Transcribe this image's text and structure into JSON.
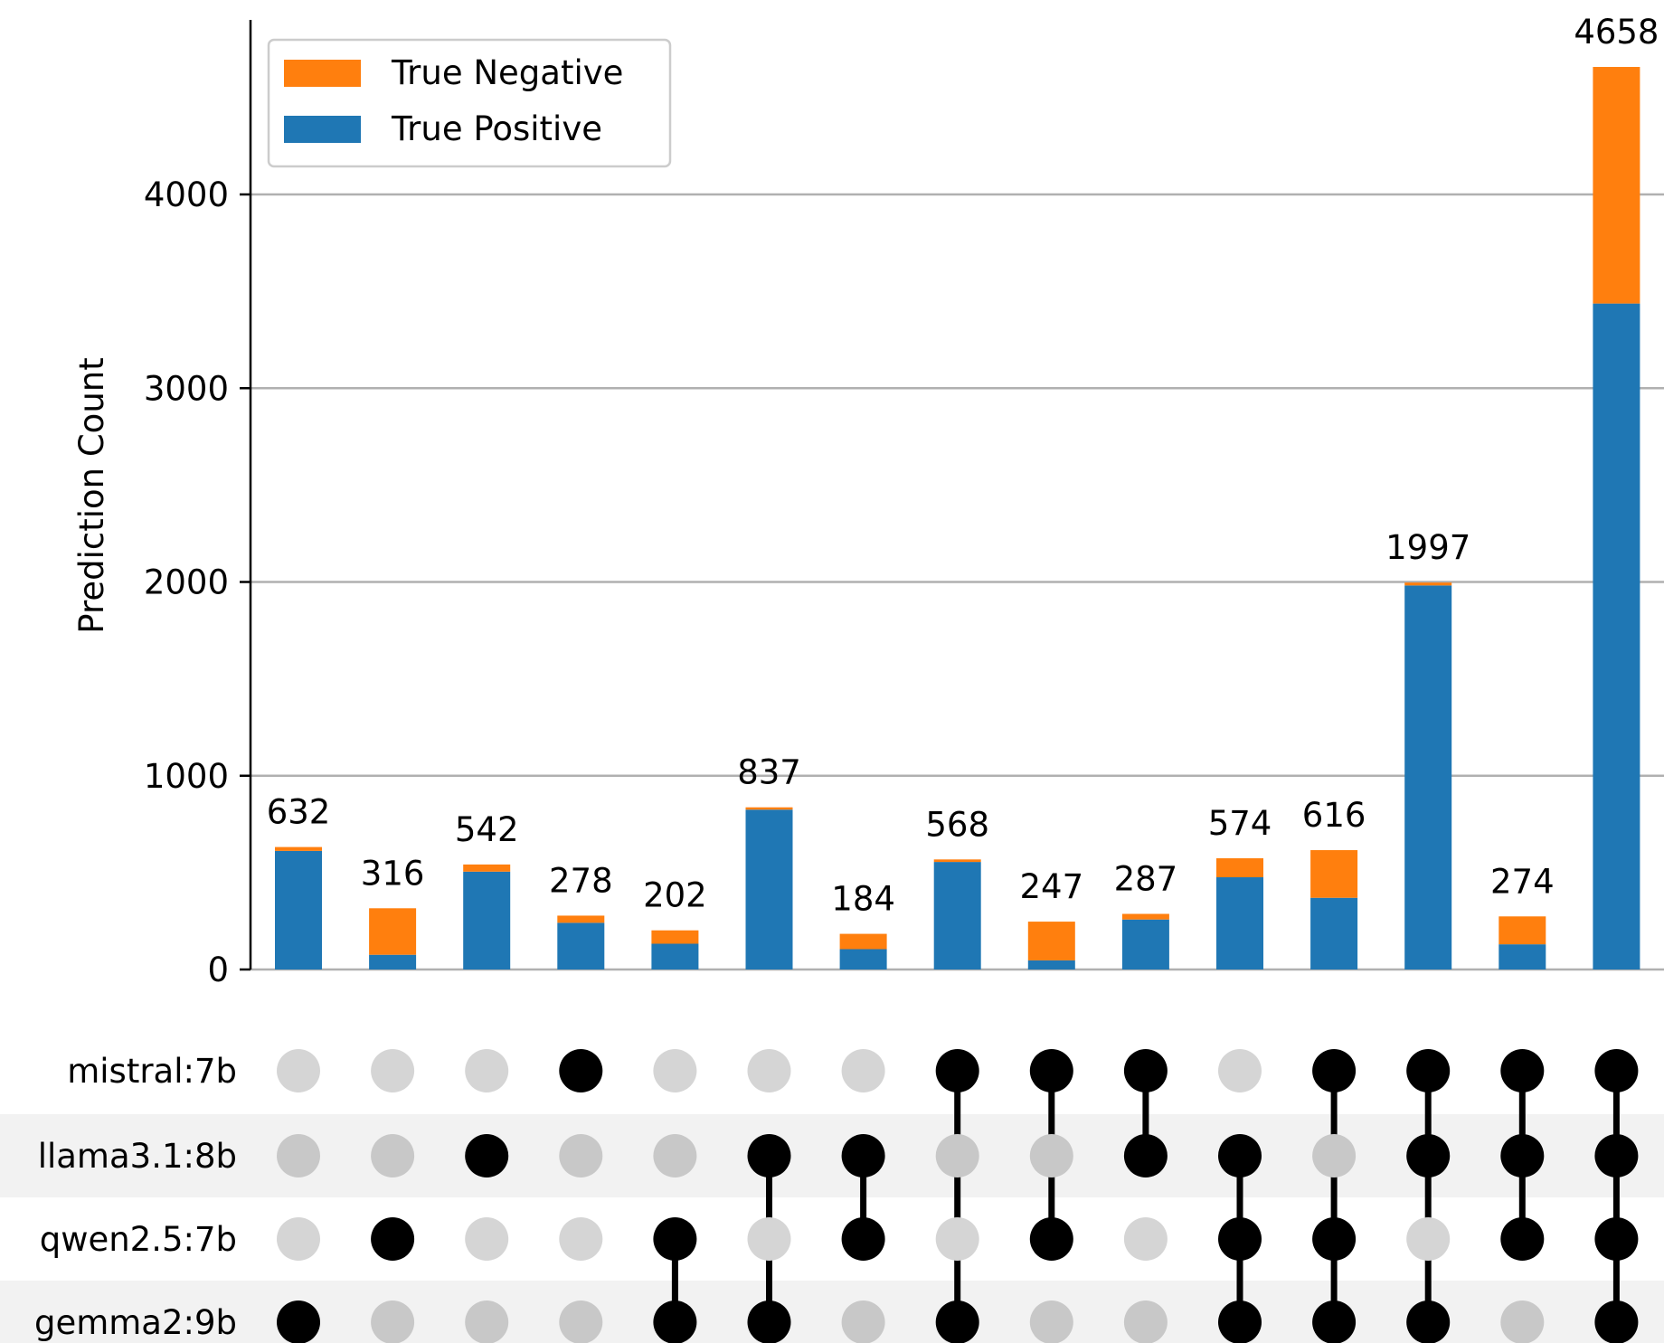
{
  "chart_data": {
    "type": "upset",
    "ylabel": "Prediction Count",
    "ylim": [
      0,
      4900
    ],
    "yticks": [
      0,
      1000,
      2000,
      3000,
      4000
    ],
    "grid": true,
    "legend_position": "top-left",
    "legend": [
      {
        "name": "True Negative",
        "color": "#ff7f0e"
      },
      {
        "name": "True Positive",
        "color": "#1f77b4"
      }
    ],
    "sets": [
      "mistral:7b",
      "llama3.1:8b",
      "qwen2.5:7b",
      "gemma2:9b"
    ],
    "intersections": [
      {
        "members": [
          "gemma2:9b"
        ],
        "total": 632,
        "tp": 612,
        "tn": 20
      },
      {
        "members": [
          "qwen2.5:7b"
        ],
        "total": 316,
        "tp": 76,
        "tn": 240
      },
      {
        "members": [
          "llama3.1:8b"
        ],
        "total": 542,
        "tp": 505,
        "tn": 37
      },
      {
        "members": [
          "mistral:7b"
        ],
        "total": 278,
        "tp": 241,
        "tn": 37
      },
      {
        "members": [
          "qwen2.5:7b",
          "gemma2:9b"
        ],
        "total": 202,
        "tp": 133,
        "tn": 69
      },
      {
        "members": [
          "llama3.1:8b",
          "gemma2:9b"
        ],
        "total": 837,
        "tp": 825,
        "tn": 12
      },
      {
        "members": [
          "llama3.1:8b",
          "qwen2.5:7b"
        ],
        "total": 184,
        "tp": 105,
        "tn": 79
      },
      {
        "members": [
          "mistral:7b",
          "gemma2:9b"
        ],
        "total": 568,
        "tp": 555,
        "tn": 13
      },
      {
        "members": [
          "mistral:7b",
          "qwen2.5:7b"
        ],
        "total": 247,
        "tp": 47,
        "tn": 200
      },
      {
        "members": [
          "mistral:7b",
          "llama3.1:8b"
        ],
        "total": 287,
        "tp": 258,
        "tn": 29
      },
      {
        "members": [
          "llama3.1:8b",
          "qwen2.5:7b",
          "gemma2:9b"
        ],
        "total": 574,
        "tp": 476,
        "tn": 98
      },
      {
        "members": [
          "mistral:7b",
          "qwen2.5:7b",
          "gemma2:9b"
        ],
        "total": 616,
        "tp": 370,
        "tn": 246
      },
      {
        "members": [
          "mistral:7b",
          "llama3.1:8b",
          "gemma2:9b"
        ],
        "total": 1997,
        "tp": 1982,
        "tn": 15
      },
      {
        "members": [
          "mistral:7b",
          "llama3.1:8b",
          "qwen2.5:7b"
        ],
        "total": 274,
        "tp": 130,
        "tn": 144
      },
      {
        "members": [
          "mistral:7b",
          "llama3.1:8b",
          "qwen2.5:7b",
          "gemma2:9b"
        ],
        "total": 4658,
        "tp": 3437,
        "tn": 1221
      }
    ]
  }
}
